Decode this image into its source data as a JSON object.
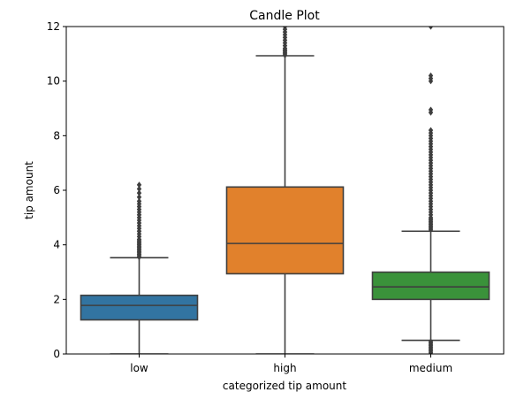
{
  "chart_data": {
    "type": "box",
    "title": "Candle Plot",
    "xlabel": "categorized tip amount",
    "ylabel": "tip amount",
    "ylim": [
      0,
      12
    ],
    "yticks": [
      0,
      2,
      4,
      6,
      8,
      10,
      12
    ],
    "categories": [
      "low",
      "high",
      "medium"
    ],
    "colors": {
      "low": "#3274a1",
      "high": "#e1812c",
      "medium": "#3a923a",
      "lines": "#3f3f3f"
    },
    "grid": false,
    "legend": "none",
    "boxes": [
      {
        "category": "low",
        "q1": 1.25,
        "median": 1.78,
        "q3": 2.15,
        "whisker_low": 0.0,
        "whisker_high": 3.53,
        "outliers_high": [
          3.55,
          3.6,
          3.65,
          3.7,
          3.75,
          3.8,
          3.85,
          3.9,
          3.95,
          4.0,
          4.05,
          4.1,
          4.15,
          4.2,
          4.3,
          4.4,
          4.5,
          4.6,
          4.7,
          4.8,
          4.9,
          5.0,
          5.1,
          5.2,
          5.3,
          5.4,
          5.5,
          5.6,
          5.75,
          5.9,
          6.05,
          6.2
        ],
        "outliers_low": []
      },
      {
        "category": "high",
        "q1": 2.94,
        "median": 4.05,
        "q3": 6.12,
        "whisker_low": 0.0,
        "whisker_high": 10.93,
        "outliers_high": [
          10.95,
          11.0,
          11.05,
          11.1,
          11.15,
          11.2,
          11.3,
          11.4,
          11.5,
          11.6,
          11.7,
          11.8,
          11.9,
          12.0
        ],
        "outliers_low": []
      },
      {
        "category": "medium",
        "q1": 2.0,
        "median": 2.46,
        "q3": 3.0,
        "whisker_low": 0.5,
        "whisker_high": 4.5,
        "outliers_high": [
          4.55,
          4.6,
          4.65,
          4.7,
          4.75,
          4.8,
          4.85,
          4.9,
          4.95,
          5.0,
          5.1,
          5.2,
          5.3,
          5.4,
          5.5,
          5.6,
          5.7,
          5.8,
          5.9,
          6.0,
          6.1,
          6.2,
          6.3,
          6.4,
          6.5,
          6.6,
          6.7,
          6.8,
          6.9,
          7.0,
          7.1,
          7.2,
          7.3,
          7.4,
          7.5,
          7.6,
          7.7,
          7.8,
          7.9,
          8.0,
          8.1,
          8.2,
          8.85,
          8.95,
          10.0,
          10.1,
          10.2,
          12.0
        ],
        "outliers_low": [
          0.0,
          0.05,
          0.1,
          0.15,
          0.2,
          0.25,
          0.3,
          0.35,
          0.4,
          0.45
        ]
      }
    ]
  }
}
